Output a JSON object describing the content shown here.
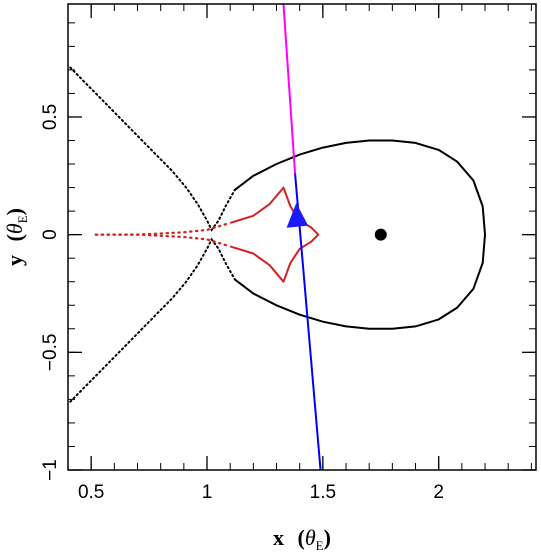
{
  "chart_data": {
    "type": "scatter",
    "xlabel": "x",
    "ylabel": "y",
    "axis_unit": "θ",
    "axis_unit_subscript": "E",
    "xlim": [
      0.4,
      2.42
    ],
    "ylim": [
      -1.0,
      0.98
    ],
    "x_ticks": [
      0.5,
      1,
      1.5,
      2
    ],
    "x_tick_labels": [
      "0.5",
      "1",
      "1.5",
      "2"
    ],
    "y_ticks": [
      -1,
      -0.5,
      0,
      0.5
    ],
    "y_tick_labels": [
      "−1",
      "−0.5",
      "0",
      "0.5"
    ],
    "x_minor_step": 0.1,
    "y_minor_step": 0.1,
    "colors": {
      "critical_curve": "#000000",
      "caustic": "#d42020",
      "trajectory_upper": "#ff00ff",
      "trajectory_lower": "#0000ff",
      "direction_arrow": "#1a1aff",
      "lens_point": "#000000"
    },
    "series": [
      {
        "kind": "critical-curve-loop",
        "points": [
          [
            1.12,
            0.19
          ],
          [
            1.2,
            0.25
          ],
          [
            1.3,
            0.3
          ],
          [
            1.4,
            0.34
          ],
          [
            1.5,
            0.37
          ],
          [
            1.6,
            0.39
          ],
          [
            1.7,
            0.4
          ],
          [
            1.8,
            0.4
          ],
          [
            1.9,
            0.39
          ],
          [
            2.0,
            0.36
          ],
          [
            2.08,
            0.31
          ],
          [
            2.15,
            0.23
          ],
          [
            2.19,
            0.12
          ],
          [
            2.2,
            0.0
          ],
          [
            2.19,
            -0.12
          ],
          [
            2.15,
            -0.23
          ],
          [
            2.08,
            -0.31
          ],
          [
            2.0,
            -0.36
          ],
          [
            1.9,
            -0.39
          ],
          [
            1.8,
            -0.4
          ],
          [
            1.7,
            -0.4
          ],
          [
            1.6,
            -0.39
          ],
          [
            1.5,
            -0.37
          ],
          [
            1.4,
            -0.34
          ],
          [
            1.3,
            -0.3
          ],
          [
            1.2,
            -0.25
          ],
          [
            1.12,
            -0.19
          ]
        ]
      },
      {
        "kind": "critical-curve-dotted",
        "points": [
          [
            0.41,
            0.71
          ],
          [
            0.47,
            0.65
          ],
          [
            0.55,
            0.57
          ],
          [
            0.62,
            0.5
          ],
          [
            0.7,
            0.42
          ],
          [
            0.78,
            0.34
          ],
          [
            0.85,
            0.27
          ],
          [
            0.91,
            0.2
          ],
          [
            0.96,
            0.13
          ],
          [
            1.0,
            0.06
          ],
          [
            1.02,
            0.02
          ],
          [
            1.05,
            0.06
          ],
          [
            1.08,
            0.12
          ],
          [
            1.12,
            0.19
          ]
        ]
      },
      {
        "kind": "critical-curve-dotted",
        "points": [
          [
            0.41,
            -0.71
          ],
          [
            0.47,
            -0.65
          ],
          [
            0.55,
            -0.57
          ],
          [
            0.62,
            -0.5
          ],
          [
            0.7,
            -0.42
          ],
          [
            0.78,
            -0.34
          ],
          [
            0.85,
            -0.27
          ],
          [
            0.91,
            -0.2
          ],
          [
            0.96,
            -0.13
          ],
          [
            1.0,
            -0.06
          ],
          [
            1.02,
            -0.02
          ],
          [
            1.05,
            -0.06
          ],
          [
            1.08,
            -0.12
          ],
          [
            1.12,
            -0.19
          ]
        ]
      },
      {
        "kind": "caustic",
        "points": [
          [
            1.1,
            0.05
          ],
          [
            1.2,
            0.08
          ],
          [
            1.27,
            0.13
          ],
          [
            1.33,
            0.2
          ],
          [
            1.36,
            0.12
          ],
          [
            1.4,
            0.06
          ],
          [
            1.45,
            0.03
          ],
          [
            1.48,
            0.0
          ],
          [
            1.45,
            -0.03
          ],
          [
            1.4,
            -0.06
          ],
          [
            1.36,
            -0.12
          ],
          [
            1.33,
            -0.2
          ],
          [
            1.27,
            -0.13
          ],
          [
            1.2,
            -0.08
          ],
          [
            1.1,
            -0.05
          ]
        ]
      },
      {
        "kind": "caustic-tail-dotted",
        "points": [
          [
            0.52,
            0.0
          ],
          [
            0.6,
            0.0
          ],
          [
            0.7,
            0.0
          ],
          [
            0.8,
            0.005
          ],
          [
            0.9,
            0.01
          ],
          [
            1.0,
            0.02
          ],
          [
            1.1,
            0.05
          ]
        ]
      },
      {
        "kind": "caustic-tail-dotted",
        "points": [
          [
            0.52,
            0.0
          ],
          [
            0.6,
            0.0
          ],
          [
            0.7,
            0.0
          ],
          [
            0.8,
            -0.005
          ],
          [
            0.9,
            -0.01
          ],
          [
            1.0,
            -0.02
          ],
          [
            1.1,
            -0.05
          ]
        ]
      },
      {
        "kind": "trajectory",
        "start": [
          1.33,
          0.98
        ],
        "mid": [
          1.38,
          0.26
        ],
        "end": [
          1.49,
          -1.0
        ]
      },
      {
        "kind": "direction-arrow",
        "at": [
          1.39,
          0.07
        ],
        "pointing": "up"
      },
      {
        "kind": "lens-point",
        "at": [
          1.75,
          0.0
        ]
      }
    ]
  }
}
